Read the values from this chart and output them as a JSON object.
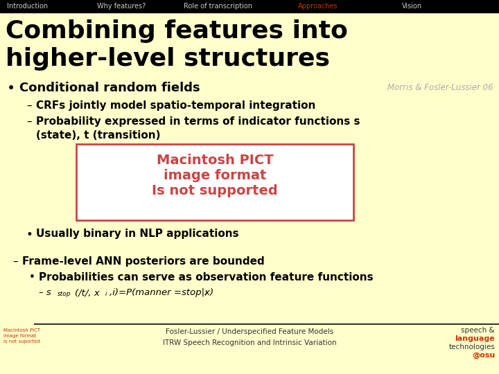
{
  "bg_color": "#FFFFCC",
  "nav_bg": "#000000",
  "nav_items": [
    "Introduction",
    "Why features?",
    "Role of transcription",
    "Approaches",
    "Vision"
  ],
  "nav_active": "Approaches",
  "nav_active_color": "#CC3300",
  "nav_inactive_color": "#CCCCCC",
  "title_line1": "Combining features into",
  "title_line2": "higher-level structures",
  "title_color": "#000000",
  "title_fontsize": 26,
  "bullet1": "Conditional random fields",
  "citation": "Morris & Fosler-Lussier 06",
  "citation_color": "#AAAAAA",
  "sub1a": "CRFs jointly model spatio-temporal integration",
  "sub1b_1": "Probability expressed in terms of indicator functions s",
  "sub1b_2": "(state), t (transition)",
  "pict_text_line1": "Macintosh PICT",
  "pict_text_line2": "image format",
  "pict_text_line3": "Is not supported",
  "pict_color": "#CC4444",
  "pict_box_color": "#FFFFFF",
  "pict_box_border": "#CC4444",
  "bullet2": "Usually binary in NLP applications",
  "sub2": "Frame-level ANN posteriors are bounded",
  "sub2b": "Probabilities can serve as observation feature functions",
  "footer_left_red": "Macintosh PICT\nimage format\nis not suported",
  "footer_center1": "Fosler-Lussier / Underspecified Feature Models",
  "footer_center2": "ITRW Speech Recognition and Intrinsic Variation",
  "footer_right1": "speech &",
  "footer_right2": "language",
  "footer_right3": "technologies",
  "footer_right4": "@osu",
  "footer_right2_color": "#CC3300",
  "footer_right4_color": "#CC3300",
  "footer_color": "#333333",
  "separator_color": "#333333",
  "nav_fontsize": 7,
  "content_fontsize": 11,
  "bullet_fontsize": 13,
  "footer_fontsize": 7.5
}
